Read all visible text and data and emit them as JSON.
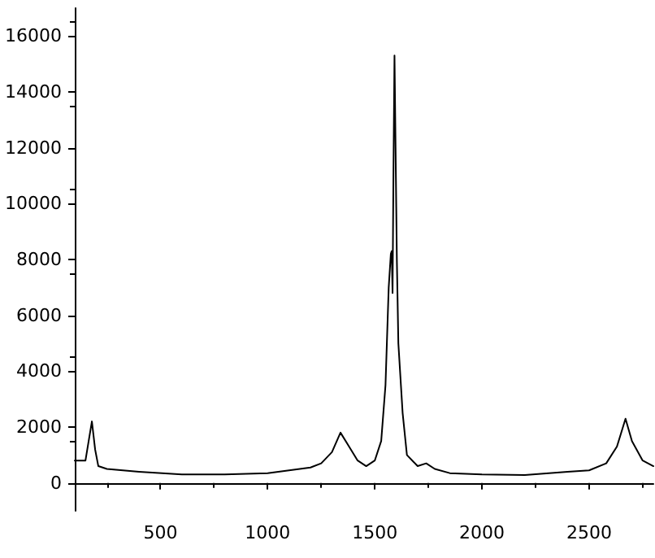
{
  "chart_data": {
    "type": "line",
    "x": [
      100,
      150,
      165,
      180,
      195,
      210,
      250,
      400,
      600,
      800,
      1000,
      1100,
      1200,
      1250,
      1300,
      1340,
      1380,
      1420,
      1460,
      1500,
      1530,
      1550,
      1565,
      1575,
      1579,
      1583,
      1587,
      1592,
      1597,
      1603,
      1610,
      1630,
      1650,
      1700,
      1740,
      1780,
      1850,
      2000,
      2200,
      2400,
      2500,
      2580,
      2630,
      2670,
      2700,
      2750,
      2800
    ],
    "series": [
      {
        "color": "#000000",
        "values": [
          800,
          800,
          1500,
          2200,
          1200,
          600,
          500,
          400,
          300,
          300,
          350,
          450,
          550,
          700,
          1100,
          1800,
          1300,
          800,
          600,
          800,
          1500,
          3500,
          7000,
          8200,
          8300,
          6800,
          11000,
          15300,
          12000,
          8000,
          5000,
          2500,
          1000,
          600,
          700,
          500,
          350,
          300,
          280,
          400,
          450,
          700,
          1300,
          2300,
          1500,
          800,
          600
        ]
      }
    ],
    "xlim": [
      100,
      2800
    ],
    "xticks": [
      500,
      1000,
      1500,
      2000,
      2500
    ],
    "ylim": [
      -1000,
      17000
    ],
    "yticks": [
      0,
      2000,
      4000,
      6000,
      8000,
      10000,
      12000,
      14000,
      16000
    ],
    "grid": false,
    "marker": "none",
    "line_style": "solid"
  }
}
